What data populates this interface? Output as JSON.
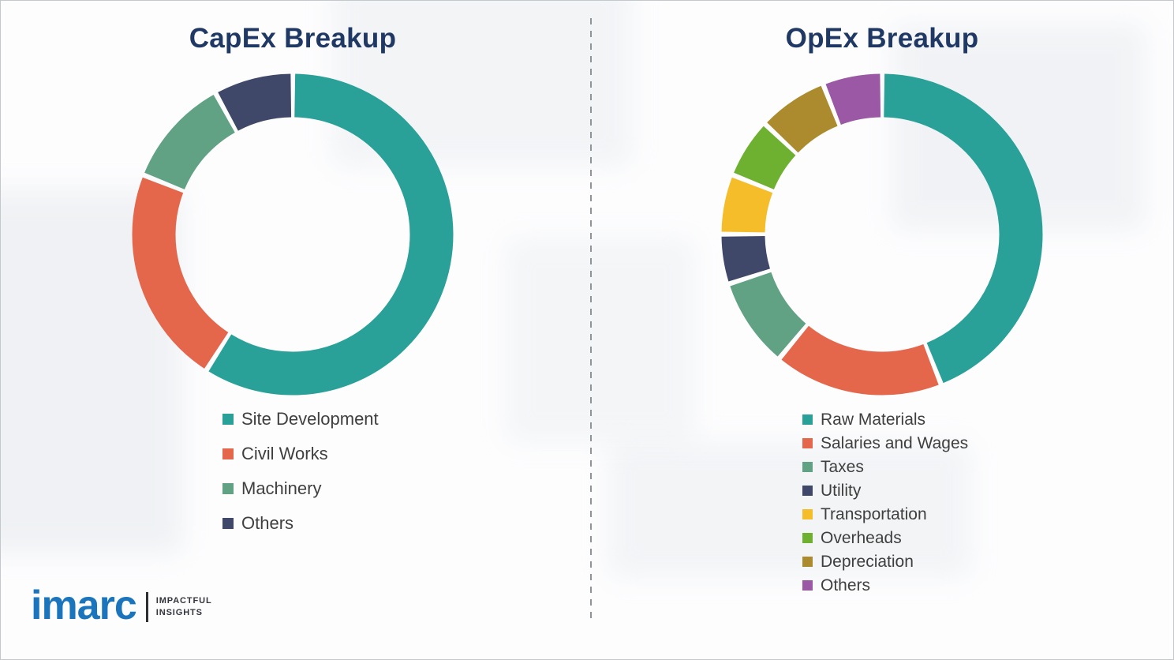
{
  "page": {
    "background_color": "#FDFDFE",
    "divider": {
      "style": "dashed-vertical",
      "color": "#8F9499"
    }
  },
  "logo": {
    "brand": "imarc",
    "tagline_line1": "IMPACTFUL",
    "tagline_line2": "INSIGHTS",
    "brand_color": "#1B75BC"
  },
  "chart_data": [
    {
      "type": "pie",
      "donut": true,
      "title": "CapEx Breakup",
      "categories": [
        "Site Development",
        "Civil Works",
        "Machinery",
        "Others"
      ],
      "values": [
        59,
        22,
        11,
        8
      ],
      "values_are_estimates": true,
      "unit": "%",
      "colors": [
        "#2AA198",
        "#E4674C",
        "#62A284",
        "#40486A"
      ],
      "start_angle": "top",
      "direction": "clockwise",
      "hole_ratio": 0.72,
      "legend_position": "below-left",
      "title_color": "#1F3864"
    },
    {
      "type": "pie",
      "donut": true,
      "title": "OpEx Breakup",
      "categories": [
        "Raw Materials",
        "Salaries and Wages",
        "Taxes",
        "Utility",
        "Transportation",
        "Overheads",
        "Depreciation",
        "Others"
      ],
      "values": [
        44,
        17,
        9,
        5,
        6,
        6,
        7,
        6
      ],
      "values_are_estimates": true,
      "unit": "%",
      "colors": [
        "#2AA198",
        "#E4674C",
        "#62A284",
        "#40486A",
        "#F4BD29",
        "#6EB02F",
        "#AB8B2D",
        "#9B58A4"
      ],
      "start_angle": "top",
      "direction": "clockwise",
      "hole_ratio": 0.72,
      "legend_position": "below-left",
      "title_color": "#1F3864"
    }
  ]
}
